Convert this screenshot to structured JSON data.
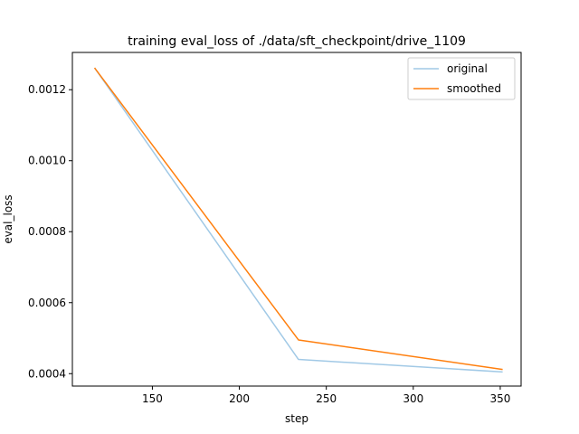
{
  "chart_data": {
    "type": "line",
    "title": "training eval_loss of ./data/sft_checkpoint/drive_1109",
    "xlabel": "step",
    "ylabel": "eval_loss",
    "xlim": [
      104,
      362
    ],
    "ylim": [
      0.000365,
      0.001305
    ],
    "x_ticks": [
      150,
      200,
      250,
      300,
      350
    ],
    "x_tick_labels": [
      "150",
      "200",
      "250",
      "300",
      "350"
    ],
    "y_ticks": [
      0.0004,
      0.0006,
      0.0008,
      0.001,
      0.0012
    ],
    "y_tick_labels": [
      "0.0004",
      "0.0006",
      "0.0008",
      "0.0010",
      "0.0012"
    ],
    "grid": false,
    "legend_position": "top-right",
    "series": [
      {
        "name": "original",
        "color": "#a1c9e6",
        "x": [
          117,
          234,
          351
        ],
        "y": [
          0.00126,
          0.00044,
          0.000405
        ]
      },
      {
        "name": "smoothed",
        "color": "#ff7f0e",
        "x": [
          117,
          234,
          351
        ],
        "y": [
          0.00126,
          0.000495,
          0.000412
        ]
      }
    ]
  }
}
